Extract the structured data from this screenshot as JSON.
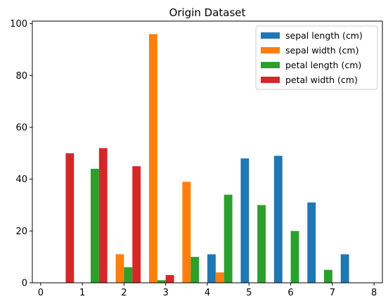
{
  "chart_data": {
    "type": "bar",
    "title": "Origin Dataset",
    "xlabel": "",
    "ylabel": "",
    "xlim": [
      -0.2,
      8.2
    ],
    "ylim": [
      0,
      101
    ],
    "xticks": [
      0,
      1,
      2,
      3,
      4,
      5,
      6,
      7,
      8
    ],
    "yticks": [
      0,
      20,
      40,
      60,
      80,
      100
    ],
    "bin_width": 0.2,
    "grid": false,
    "legend_position": "top-right",
    "series": [
      {
        "name": "sepal length (cm)",
        "color": "#1f77b4",
        "x": [
          0.1,
          0.9,
          1.7,
          2.5,
          3.3,
          4.1,
          4.9,
          5.7,
          6.5,
          7.3
        ],
        "values": [
          0,
          0,
          0,
          0,
          0,
          11,
          48,
          49,
          31,
          11
        ]
      },
      {
        "name": "sepal width (cm)",
        "color": "#ff7f0e",
        "x": [
          0.3,
          1.1,
          1.9,
          2.7,
          3.5,
          4.3,
          5.1,
          5.9,
          6.7,
          7.5
        ],
        "values": [
          0,
          0,
          11,
          96,
          39,
          4,
          0,
          0,
          0,
          0
        ]
      },
      {
        "name": "petal length (cm)",
        "color": "#2ca02c",
        "x": [
          0.5,
          1.3,
          2.1,
          2.9,
          3.7,
          4.5,
          5.3,
          6.1,
          6.9,
          7.7
        ],
        "values": [
          0,
          44,
          6,
          1,
          10,
          34,
          30,
          20,
          5,
          0
        ]
      },
      {
        "name": "petal width (cm)",
        "color": "#d62728",
        "x": [
          0.7,
          1.5,
          2.3,
          3.1,
          3.9,
          4.7,
          5.5,
          6.3,
          7.1,
          7.9
        ],
        "values": [
          50,
          52,
          45,
          3,
          0,
          0,
          0,
          0,
          0,
          0
        ]
      }
    ]
  }
}
